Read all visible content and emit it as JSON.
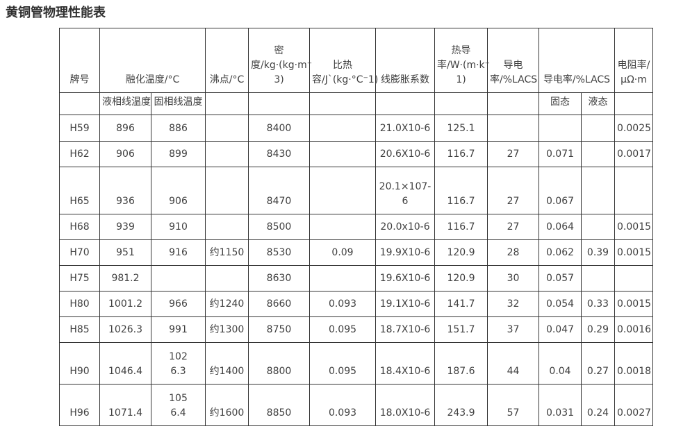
{
  "page": {
    "title": "黄铜管物理性能表"
  },
  "table": {
    "header_row1": [
      {
        "label": "牌号",
        "colspan": 1
      },
      {
        "label": "融化温度/°C",
        "colspan": 2
      },
      {
        "label": "沸点/°C",
        "colspan": 1
      },
      {
        "label": "密\n度/kg·(kg·m⁻\n3)",
        "colspan": 1
      },
      {
        "label": "比热\n容/J`(kg·°C⁻1)",
        "colspan": 1
      },
      {
        "label": "线膨胀系数",
        "colspan": 1
      },
      {
        "label": "热导\n率/W·(m·k⁻\n1)",
        "colspan": 1
      },
      {
        "label": "导电\n率/%LACS",
        "colspan": 1
      },
      {
        "label": "导电率/%LACS",
        "colspan": 2
      },
      {
        "label": "电阻率/\nμΩ·m",
        "colspan": 1
      }
    ],
    "header_row2": [
      "",
      "液相线温度",
      "固相线温度",
      "",
      "",
      "",
      "",
      "",
      "",
      "固态",
      "液态",
      ""
    ],
    "rows": [
      [
        "H59",
        "896",
        "886",
        "",
        "8400",
        "",
        "21.0X10-6",
        "125.1",
        "",
        "",
        "",
        "0.0025"
      ],
      [
        "H62",
        "906",
        "899",
        "",
        "8430",
        "",
        "20.6X10-6",
        "116.7",
        "27",
        "0.071",
        "",
        "0.0017"
      ],
      [
        "H65",
        "936",
        "906",
        "",
        "8470",
        "",
        "20.1×107-\n6",
        "116.7",
        "27",
        "0.067",
        "",
        ""
      ],
      [
        "H68",
        "939",
        "910",
        "",
        "8500",
        "",
        "20.0x10-6",
        "116.7",
        "27",
        "0.064",
        "",
        "0.0015"
      ],
      [
        "H70",
        "951",
        "916",
        "约1150",
        "8530",
        "0.09",
        "19.9X10-6",
        "120.9",
        "28",
        "0.062",
        "0.39",
        "0.0015"
      ],
      [
        "H75",
        "981.2",
        "",
        "",
        "8630",
        "",
        "19.6X10-6",
        "120.9",
        "30",
        "0.057",
        "",
        ""
      ],
      [
        "H80",
        "1001.2",
        "966",
        "约1240",
        "8660",
        "0.093",
        "19.1X10-6",
        "141.7",
        "32",
        "0.054",
        "0.33",
        "0.0015"
      ],
      [
        "H85",
        "1026.3",
        "991",
        "约1300",
        "8750",
        "0.095",
        "18.7X10-6",
        "151.7",
        "37",
        "0.047",
        "0.29",
        "0.0016"
      ],
      [
        "H90",
        "1046.4",
        "102\n6.3",
        "约1400",
        "8800",
        "0.095",
        "18.4X10-6",
        "187.6",
        "44",
        "0.04",
        "0.27",
        "0.0018"
      ],
      [
        "H96",
        "1071.4",
        "105\n6.4",
        "约1600",
        "8850",
        "0.093",
        "18.0X10-6",
        "243.9",
        "57",
        "0.031",
        "0.24",
        "0.0027"
      ]
    ]
  }
}
